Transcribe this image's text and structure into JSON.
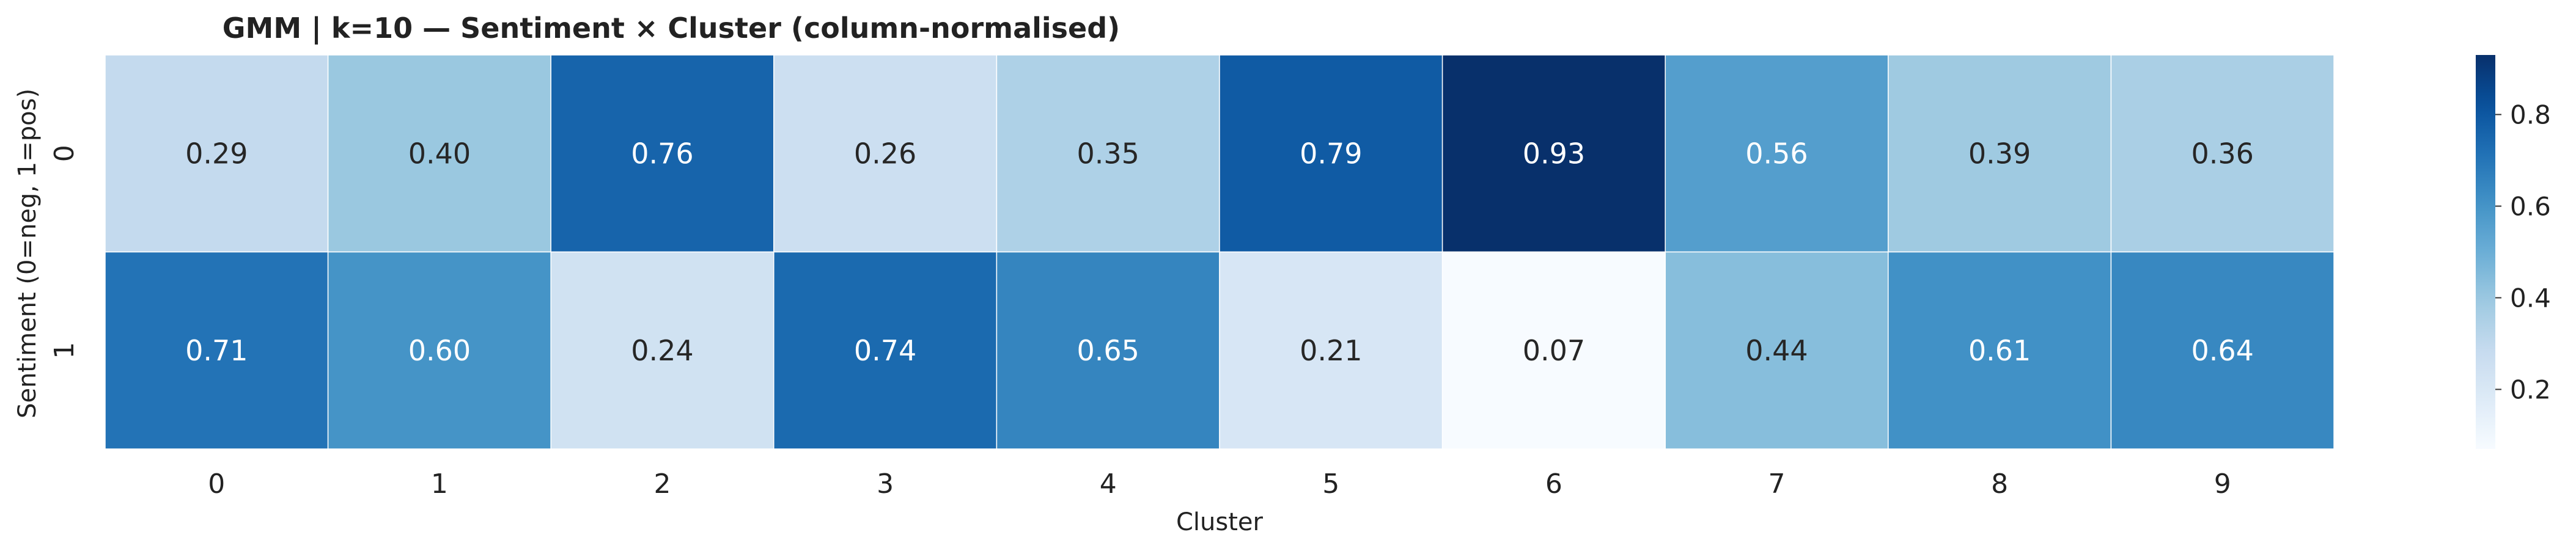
{
  "chart_data": {
    "type": "heatmap",
    "title": "GMM | k=10 — Sentiment × Cluster (column-normalised)",
    "xlabel": "Cluster",
    "ylabel": "Sentiment (0=neg, 1=pos)",
    "x_categories": [
      "0",
      "1",
      "2",
      "3",
      "4",
      "5",
      "6",
      "7",
      "8",
      "9"
    ],
    "y_categories": [
      "0",
      "1"
    ],
    "values": [
      [
        0.29,
        0.4,
        0.76,
        0.26,
        0.35,
        0.79,
        0.93,
        0.56,
        0.39,
        0.36
      ],
      [
        0.71,
        0.6,
        0.24,
        0.74,
        0.65,
        0.21,
        0.07,
        0.44,
        0.61,
        0.64
      ]
    ],
    "colormap": "Blues",
    "color_range": [
      0.07,
      0.93
    ],
    "colorbar_ticks": [
      "0.2",
      "0.4",
      "0.6",
      "0.8"
    ],
    "colorbar_tick_values": [
      0.2,
      0.4,
      0.6,
      0.8
    ],
    "annotation_format": "0.00",
    "grid": false,
    "colorbar_position": "right"
  }
}
